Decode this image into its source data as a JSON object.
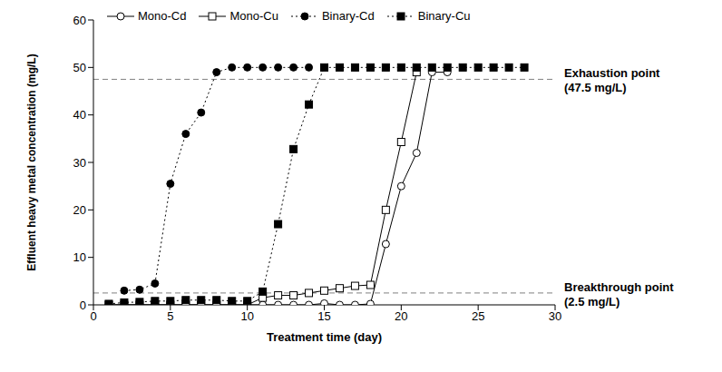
{
  "chart_data": {
    "type": "line",
    "x_label": "Treatment time (day)",
    "y_label": "Effluent heavy metal concentration (mg/L)",
    "x": [
      1,
      2,
      3,
      4,
      5,
      6,
      7,
      8,
      9,
      10,
      11,
      12,
      13,
      14,
      15,
      16,
      17,
      18,
      19,
      20,
      21,
      22,
      23,
      24,
      25,
      26,
      27,
      28
    ],
    "series": [
      {
        "name": "Mono-Cd",
        "color": "#000000",
        "marker": "open circle",
        "line_style": "solid",
        "values": [
          0,
          0,
          0,
          0,
          0,
          0,
          0,
          0,
          0,
          0,
          0,
          0,
          0,
          0,
          0.3,
          0,
          0,
          0.2,
          12.8,
          25,
          32,
          49,
          49,
          null,
          null,
          null,
          null,
          null
        ]
      },
      {
        "name": "Mono-Cu",
        "color": "#000000",
        "marker": "open square",
        "line_style": "solid",
        "values": [
          0,
          0,
          0,
          0,
          0,
          0,
          0,
          0,
          0,
          0,
          1.5,
          2,
          2,
          2.5,
          3,
          3.5,
          4,
          4.2,
          20,
          34.3,
          49,
          null,
          null,
          null,
          null,
          null,
          null,
          null
        ]
      },
      {
        "name": "Binary-Cd",
        "color": "#000000",
        "marker": "circle",
        "line_style": "dotted",
        "values": [
          null,
          3,
          3.2,
          4.5,
          25.5,
          36,
          40.5,
          49,
          50,
          50,
          50,
          50,
          50,
          50,
          null,
          null,
          null,
          null,
          null,
          null,
          null,
          null,
          null,
          null,
          null,
          null,
          null,
          null
        ]
      },
      {
        "name": "Binary-Cu",
        "color": "#000000",
        "marker": "square",
        "line_style": "dotted",
        "values": [
          0.2,
          0.5,
          0.6,
          0.8,
          0.8,
          1,
          1,
          1,
          0.8,
          0.8,
          2.8,
          17,
          32.8,
          42.2,
          50,
          50,
          50,
          50,
          50,
          50,
          50,
          50,
          50,
          50,
          50,
          50,
          50,
          50
        ]
      }
    ],
    "xlim": [
      0,
      30
    ],
    "xticks": [
      0,
      5,
      10,
      15,
      20,
      25,
      30
    ],
    "ylim": [
      0,
      60
    ],
    "yticks": [
      0,
      10,
      20,
      30,
      40,
      50,
      60
    ],
    "grid": false,
    "legend": "top",
    "annotations": [
      {
        "text": "Exhaustion point (47.5 mg/L)",
        "y": 47.5
      },
      {
        "text": "Breakthrough point (2.5 mg/L)",
        "y": 2.5
      }
    ]
  }
}
